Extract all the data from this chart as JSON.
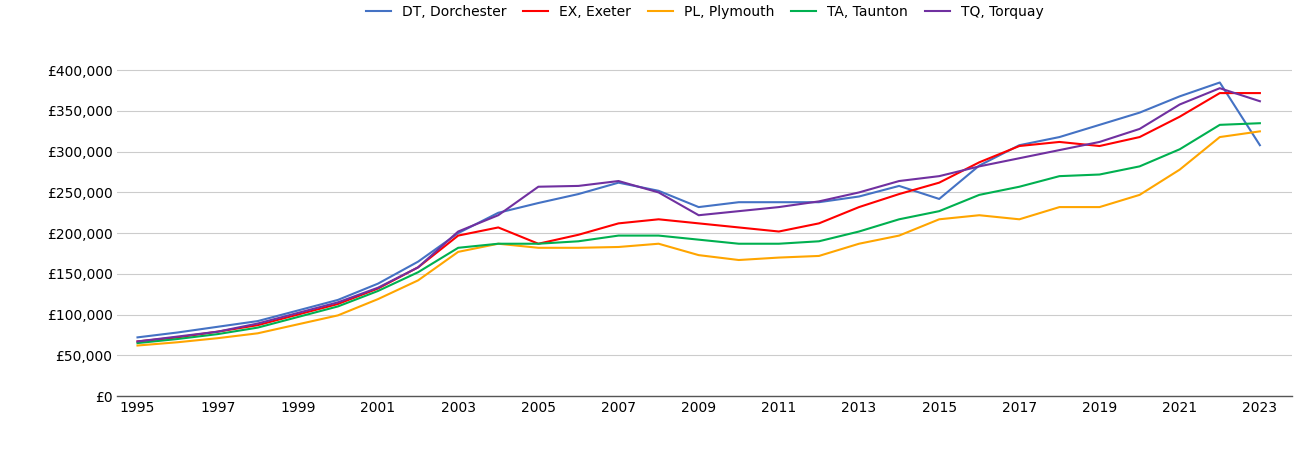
{
  "series": {
    "DT, Dorchester": {
      "color": "#4472C4",
      "years": [
        1995,
        1996,
        1997,
        1998,
        1999,
        2000,
        2001,
        2002,
        2003,
        2004,
        2005,
        2006,
        2007,
        2008,
        2009,
        2010,
        2011,
        2012,
        2013,
        2014,
        2015,
        2016,
        2017,
        2018,
        2019,
        2020,
        2021,
        2022,
        2023
      ],
      "values": [
        72000,
        78000,
        85000,
        92000,
        105000,
        118000,
        138000,
        165000,
        200000,
        225000,
        237000,
        248000,
        262000,
        252000,
        232000,
        238000,
        238000,
        238000,
        245000,
        258000,
        242000,
        283000,
        308000,
        318000,
        333000,
        348000,
        368000,
        385000,
        308000
      ]
    },
    "EX, Exeter": {
      "color": "#FF0000",
      "years": [
        1995,
        1996,
        1997,
        1998,
        1999,
        2000,
        2001,
        2002,
        2003,
        2004,
        2005,
        2006,
        2007,
        2008,
        2009,
        2010,
        2011,
        2012,
        2013,
        2014,
        2015,
        2016,
        2017,
        2018,
        2019,
        2020,
        2021,
        2022,
        2023
      ],
      "values": [
        67000,
        72000,
        79000,
        87000,
        100000,
        113000,
        132000,
        158000,
        197000,
        207000,
        187000,
        198000,
        212000,
        217000,
        212000,
        207000,
        202000,
        212000,
        232000,
        248000,
        262000,
        287000,
        307000,
        312000,
        307000,
        318000,
        343000,
        372000,
        372000
      ]
    },
    "PL, Plymouth": {
      "color": "#FFA500",
      "years": [
        1995,
        1996,
        1997,
        1998,
        1999,
        2000,
        2001,
        2002,
        2003,
        2004,
        2005,
        2006,
        2007,
        2008,
        2009,
        2010,
        2011,
        2012,
        2013,
        2014,
        2015,
        2016,
        2017,
        2018,
        2019,
        2020,
        2021,
        2022,
        2023
      ],
      "values": [
        62000,
        66000,
        71000,
        77000,
        88000,
        99000,
        119000,
        142000,
        177000,
        187000,
        182000,
        182000,
        183000,
        187000,
        173000,
        167000,
        170000,
        172000,
        187000,
        197000,
        217000,
        222000,
        217000,
        232000,
        232000,
        247000,
        278000,
        318000,
        325000
      ]
    },
    "TA, Taunton": {
      "color": "#00B050",
      "years": [
        1995,
        1996,
        1997,
        1998,
        1999,
        2000,
        2001,
        2002,
        2003,
        2004,
        2005,
        2006,
        2007,
        2008,
        2009,
        2010,
        2011,
        2012,
        2013,
        2014,
        2015,
        2016,
        2017,
        2018,
        2019,
        2020,
        2021,
        2022,
        2023
      ],
      "values": [
        65000,
        70000,
        76000,
        84000,
        97000,
        110000,
        129000,
        152000,
        182000,
        187000,
        187000,
        190000,
        197000,
        197000,
        192000,
        187000,
        187000,
        190000,
        202000,
        217000,
        227000,
        247000,
        257000,
        270000,
        272000,
        282000,
        303000,
        333000,
        335000
      ]
    },
    "TQ, Torquay": {
      "color": "#7030A0",
      "years": [
        1995,
        1996,
        1997,
        1998,
        1999,
        2000,
        2001,
        2002,
        2003,
        2004,
        2005,
        2006,
        2007,
        2008,
        2009,
        2010,
        2011,
        2012,
        2013,
        2014,
        2015,
        2016,
        2017,
        2018,
        2019,
        2020,
        2021,
        2022,
        2023
      ],
      "values": [
        67000,
        73000,
        79000,
        89000,
        102000,
        115000,
        133000,
        158000,
        202000,
        222000,
        257000,
        258000,
        264000,
        250000,
        222000,
        227000,
        232000,
        239000,
        250000,
        264000,
        270000,
        282000,
        292000,
        302000,
        312000,
        328000,
        358000,
        378000,
        362000
      ]
    }
  },
  "ylim": [
    0,
    420000
  ],
  "yticks": [
    0,
    50000,
    100000,
    150000,
    200000,
    250000,
    300000,
    350000,
    400000
  ],
  "xticks": [
    1995,
    1997,
    1999,
    2001,
    2003,
    2005,
    2007,
    2009,
    2011,
    2013,
    2015,
    2017,
    2019,
    2021,
    2023
  ],
  "xlim": [
    1994.5,
    2023.8
  ],
  "background_color": "#ffffff",
  "grid_color": "#cccccc",
  "legend_ncol": 5
}
